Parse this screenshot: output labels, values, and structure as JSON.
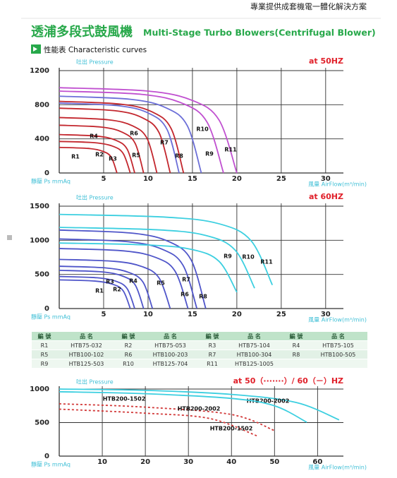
{
  "header": {
    "tagline": "專業提供成套機電一體化解決方案",
    "title_zh": "透浦多段式鼓風機",
    "title_en": "Multi-Stage Turbo Blowers(Centrifugal Blower)",
    "section": "性能表 Characteristic curves"
  },
  "chart_data": [
    {
      "type": "line",
      "title": "at 50HZ",
      "pressure_label": "吐出 Pressure",
      "y_label": "靜壓 Ps mmAq",
      "x_label": "風量 AirFlow(m³/min)",
      "xlim": [
        0,
        32
      ],
      "ylim": [
        0,
        1200
      ],
      "xticks": [
        5,
        10,
        15,
        20,
        25,
        30
      ],
      "yticks": [
        0,
        400,
        800,
        1200
      ],
      "grid": true,
      "series": [
        {
          "name": "R1",
          "color": "#c3272e",
          "x": [
            0,
            3.25,
            4.88,
            5.85,
            6.5
          ],
          "values": [
            300,
            288,
            255,
            186,
            0
          ]
        },
        {
          "name": "R2",
          "color": "#c3272e",
          "x": [
            0,
            4,
            6,
            7.2,
            8
          ],
          "values": [
            370,
            355,
            315,
            229,
            0
          ]
        },
        {
          "name": "R3",
          "color": "#c3272e",
          "x": [
            0,
            4.25,
            6.38,
            7.65,
            8.5
          ],
          "values": [
            450,
            432,
            383,
            279,
            0
          ]
        },
        {
          "name": "R4",
          "color": "#c3272e",
          "x": [
            0,
            4.75,
            7.13,
            8.55,
            9.5
          ],
          "values": [
            560,
            538,
            476,
            347,
            0
          ]
        },
        {
          "name": "R5",
          "color": "#c3272e",
          "x": [
            0,
            5.5,
            8.25,
            9.9,
            11
          ],
          "values": [
            650,
            624,
            553,
            403,
            0
          ]
        },
        {
          "name": "R6",
          "color": "#c3272e",
          "x": [
            0,
            6.25,
            9.38,
            11.25,
            12.5
          ],
          "values": [
            760,
            730,
            646,
            471,
            0
          ]
        },
        {
          "name": "R7",
          "color": "#6c6fd8",
          "x": [
            0,
            6.75,
            10.13,
            12.15,
            13.5
          ],
          "values": [
            820,
            787,
            697,
            508,
            0
          ]
        },
        {
          "name": "R8",
          "color": "#c3272e",
          "x": [
            0,
            7,
            10.5,
            12.6,
            14
          ],
          "values": [
            840,
            806,
            714,
            521,
            0
          ]
        },
        {
          "name": "R9",
          "color": "#6c6fd8",
          "x": [
            0,
            8,
            12,
            14.4,
            16
          ],
          "values": [
            900,
            864,
            765,
            558,
            0
          ]
        },
        {
          "name": "R10",
          "color": "#c050d0",
          "x": [
            0,
            9.25,
            13.88,
            16.65,
            18.5
          ],
          "values": [
            960,
            922,
            816,
            595,
            0
          ]
        },
        {
          "name": "R11",
          "color": "#c050d0",
          "x": [
            0,
            10,
            15,
            18,
            20
          ],
          "values": [
            1000,
            960,
            850,
            620,
            0
          ]
        }
      ]
    },
    {
      "type": "line",
      "title": "at 60HZ",
      "pressure_label": "吐出 Pressure",
      "y_label": "靜壓 Ps mmAq",
      "x_label": "風量 AirFlow(m³/min)",
      "xlim": [
        0,
        32
      ],
      "ylim": [
        0,
        1500
      ],
      "xticks": [
        5,
        10,
        15,
        20,
        25,
        30
      ],
      "yticks": [
        0,
        500,
        1000,
        1500
      ],
      "grid": true,
      "series": [
        {
          "name": "R1",
          "color": "#4f55c9",
          "x": [
            0,
            4,
            6,
            7.2,
            8
          ],
          "values": [
            420,
            403,
            357,
            260,
            0
          ]
        },
        {
          "name": "R2",
          "color": "#4f55c9",
          "x": [
            0,
            4.25,
            6.38,
            7.65,
            8.5
          ],
          "values": [
            470,
            451,
            400,
            291,
            0
          ]
        },
        {
          "name": "R3",
          "color": "#4f55c9",
          "x": [
            0,
            4.75,
            7.13,
            8.55,
            9.5
          ],
          "values": [
            560,
            538,
            476,
            347,
            0
          ]
        },
        {
          "name": "R4",
          "color": "#4f55c9",
          "x": [
            0,
            5.25,
            7.88,
            9.45,
            10.5
          ],
          "values": [
            620,
            595,
            527,
            384,
            0
          ]
        },
        {
          "name": "R5",
          "color": "#4f55c9",
          "x": [
            0,
            6.25,
            9.38,
            11.25,
            12.5
          ],
          "values": [
            720,
            691,
            612,
            446,
            0
          ]
        },
        {
          "name": "R6",
          "color": "#4f55c9",
          "x": [
            0,
            7.25,
            10.88,
            13.05,
            14.5
          ],
          "values": [
            880,
            845,
            748,
            546,
            0
          ]
        },
        {
          "name": "R7",
          "color": "#4f55c9",
          "x": [
            0,
            7.75,
            11.63,
            13.95,
            15.5
          ],
          "values": [
            1020,
            979,
            867,
            632,
            0
          ]
        },
        {
          "name": "R8",
          "color": "#4f55c9",
          "x": [
            0,
            8.25,
            12.38,
            14.85,
            16.5
          ],
          "values": [
            1150,
            1104,
            978,
            713,
            0
          ]
        },
        {
          "name": "R9",
          "color": "#3ccfe0",
          "x": [
            0,
            10,
            15,
            18,
            20
          ],
          "values": [
            960,
            931,
            864,
            691,
            240
          ]
        },
        {
          "name": "R10",
          "color": "#3ccfe0",
          "x": [
            0,
            11,
            16.5,
            19.8,
            22
          ],
          "values": [
            1190,
            1154,
            1071,
            857,
            298
          ]
        },
        {
          "name": "R11",
          "color": "#3ccfe0",
          "x": [
            0,
            12,
            18,
            21.6,
            24
          ],
          "values": [
            1380,
            1339,
            1242,
            994,
            345
          ]
        }
      ]
    },
    {
      "type": "line",
      "title": "at 50（·······）/ 60（－）HZ",
      "pressure_label": "吐出 Pressure",
      "y_label": "靜壓 Ps mmAq",
      "x_label": "風量 AirFlow(m³/min)",
      "xlim": [
        0,
        66
      ],
      "ylim": [
        0,
        1000
      ],
      "xticks": [
        10,
        20,
        30,
        40,
        50,
        60
      ],
      "yticks": [
        0,
        500,
        1000
      ],
      "grid": true,
      "series": [
        {
          "name": "HTB200-2002",
          "color": "#3ccfe0",
          "style": "solid",
          "x": [
            0,
            20,
            40,
            55,
            65
          ],
          "values": [
            1000,
            980,
            920,
            800,
            540
          ]
        },
        {
          "name": "HTB200-1502",
          "color": "#3ccfe0",
          "style": "solid",
          "x": [
            0,
            20,
            40,
            50,
            57.5
          ],
          "values": [
            960,
            930,
            860,
            750,
            505
          ]
        },
        {
          "name": "HTB200-2002",
          "color": "#d23a3a",
          "style": "dashed",
          "x": [
            0,
            20,
            40,
            50
          ],
          "values": [
            780,
            730,
            620,
            380
          ]
        },
        {
          "name": "HTB200-1502",
          "color": "#d23a3a",
          "style": "dashed",
          "x": [
            0,
            20,
            35,
            46
          ],
          "values": [
            700,
            640,
            560,
            300
          ]
        }
      ]
    }
  ],
  "table": {
    "header": [
      "編 號",
      "品 名",
      "編 號",
      "品 名",
      "編 號",
      "品 名",
      "編 號",
      "品 名"
    ],
    "rows": [
      [
        "R1",
        "HTB75-032",
        "R2",
        "HTB75-053",
        "R3",
        "HTB75-104",
        "R4",
        "HTB75-105"
      ],
      [
        "R5",
        "HTB100-102",
        "R6",
        "HTB100-203",
        "R7",
        "HTB100-304",
        "R8",
        "HTB100-505"
      ],
      [
        "R9",
        "HTB125-503",
        "R10",
        "HTB125-704",
        "R11",
        "HTB125-1005"
      ]
    ]
  }
}
